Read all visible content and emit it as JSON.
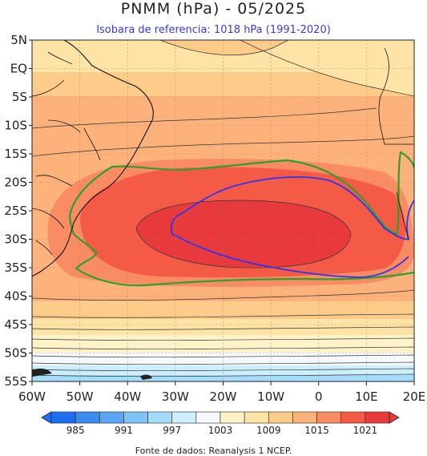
{
  "title": "PNMM (hPa) - 05/2025",
  "subtitle": "Isobara de referencia: 1018 hPa (1991-2020)",
  "source": "Fonte de dados: Reanalysis 1 NCEP.",
  "lat_labels": [
    "5N",
    "EQ",
    "5S",
    "10S",
    "15S",
    "20S",
    "25S",
    "30S",
    "35S",
    "40S",
    "45S",
    "50S",
    "55S"
  ],
  "lon_labels": [
    "60W",
    "50W",
    "40W",
    "30W",
    "20W",
    "10W",
    "0",
    "10E",
    "20E"
  ],
  "colorbar": {
    "tick_labels": [
      "985",
      "991",
      "997",
      "1003",
      "1009",
      "1015",
      "1021"
    ],
    "colors": [
      "#1e6ef0",
      "#3c8cf0",
      "#5aa5f5",
      "#7dc3f8",
      "#a5dcfa",
      "#cdeefc",
      "#f5f9fc",
      "#fdf2c8",
      "#fde3a5",
      "#fdcc8a",
      "#fcb27a",
      "#fa8c64",
      "#f55a46",
      "#e83a3c"
    ]
  },
  "legend_colors": {
    "reference_isobar": "#3333ee",
    "contour_1018": "#2ca02c"
  }
}
